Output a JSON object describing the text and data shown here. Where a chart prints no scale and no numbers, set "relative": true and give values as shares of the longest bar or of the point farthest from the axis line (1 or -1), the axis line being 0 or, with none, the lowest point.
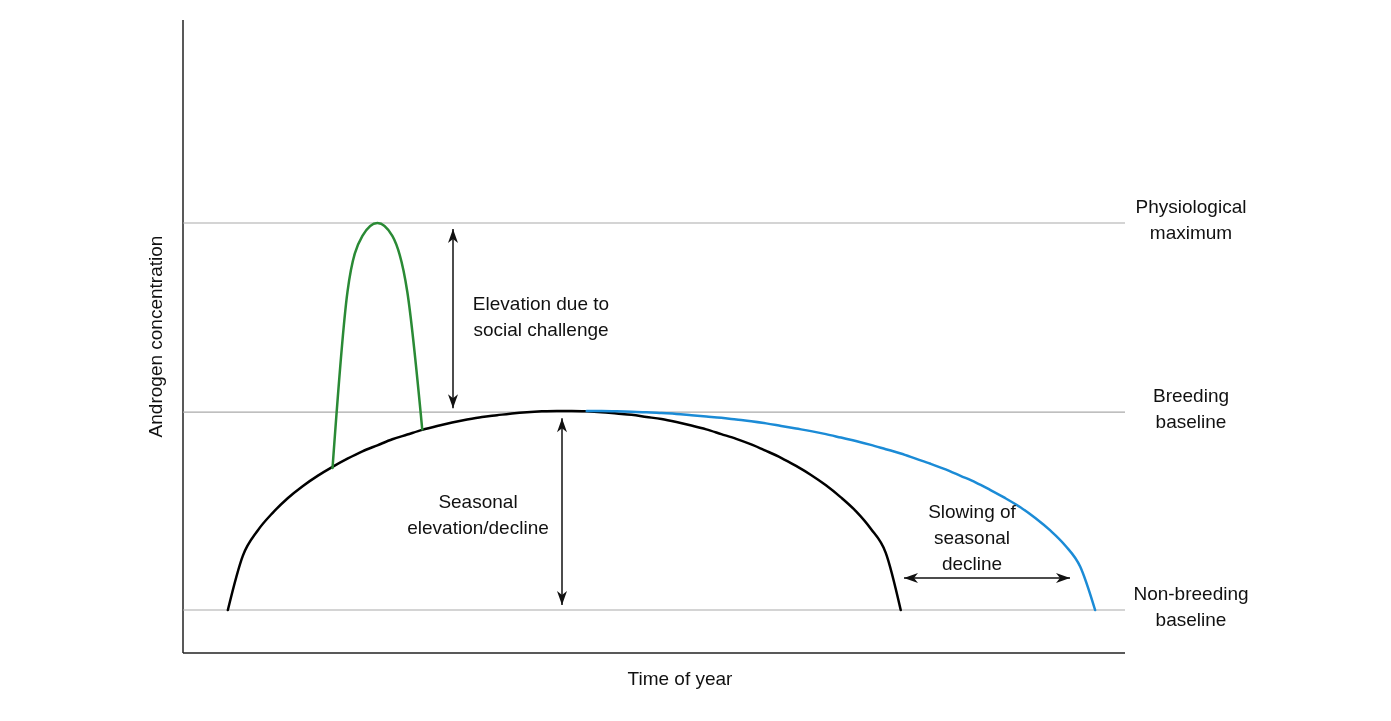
{
  "chart_data": {
    "type": "line",
    "relative": true,
    "xlabel": "Time of year",
    "ylabel": "Androgen concentration",
    "categories": [
      null,
      null,
      null,
      null,
      null,
      null,
      null,
      null,
      null,
      null,
      null,
      null,
      null,
      null,
      null,
      null,
      null,
      null,
      null,
      null,
      null,
      null,
      null,
      null,
      null,
      null,
      null,
      null,
      null,
      null,
      null,
      null,
      null,
      null,
      null,
      null,
      null,
      null,
      null,
      null,
      null,
      null,
      null,
      null,
      null,
      null,
      null,
      null,
      null,
      null,
      null,
      null,
      null,
      null,
      null,
      null,
      null,
      null,
      null,
      null,
      null,
      null,
      null,
      null
    ],
    "series": [
      {
        "color": "#000000",
        "values": [
          null,
          null,
          null,
          0.1,
          0.226,
          0.285,
          0.326,
          0.36,
          0.388,
          0.412,
          0.433,
          0.452,
          0.469,
          0.483,
          0.497,
          0.508,
          0.519,
          0.528,
          0.536,
          0.543,
          0.549,
          0.553,
          0.557,
          0.56,
          0.562,
          0.563,
          0.563,
          0.562,
          0.56,
          0.557,
          0.554,
          0.549,
          0.544,
          0.537,
          0.529,
          0.52,
          0.509,
          0.498,
          0.485,
          0.47,
          0.454,
          0.435,
          0.414,
          0.39,
          0.362,
          0.33,
          0.289,
          0.233,
          0.1,
          null,
          null,
          null,
          null,
          null,
          null,
          null,
          null,
          null,
          null,
          null,
          null,
          null,
          null,
          null
        ]
      },
      {
        "color": "#2a8a35",
        "values": [
          null,
          null,
          null,
          null,
          null,
          null,
          null,
          null,
          null,
          null,
          0.43,
          0.84,
          0.97,
          1,
          0.97,
          0.84,
          0.52,
          null,
          null,
          null,
          null,
          null,
          null,
          null,
          null,
          null,
          null,
          null,
          null,
          null,
          null,
          null,
          null,
          null,
          null,
          null,
          null,
          null,
          null,
          null,
          null,
          null,
          null,
          null,
          null,
          null,
          null,
          null,
          null,
          null,
          null,
          null,
          null,
          null,
          null,
          null,
          null,
          null,
          null,
          null,
          null,
          null,
          null,
          null
        ]
      },
      {
        "color": "#1b8bd6",
        "values": [
          null,
          null,
          null,
          null,
          null,
          null,
          null,
          null,
          null,
          null,
          null,
          null,
          null,
          null,
          null,
          null,
          null,
          null,
          null,
          null,
          null,
          null,
          null,
          null,
          null,
          null,
          null,
          0.563,
          0.563,
          0.562,
          0.561,
          0.56,
          0.558,
          0.556,
          0.553,
          0.55,
          0.547,
          0.543,
          0.539,
          0.534,
          0.528,
          0.522,
          0.516,
          0.509,
          0.501,
          0.493,
          0.484,
          0.474,
          0.464,
          0.452,
          0.44,
          0.427,
          0.412,
          0.397,
          0.379,
          0.36,
          0.339,
          0.314,
          0.285,
          0.25,
          0.201,
          0.1,
          null,
          null
        ]
      }
    ],
    "ref_lines": [
      {
        "axis": "y",
        "value": 1.0,
        "label": "Physiological maximum",
        "color": "#aaaaaa"
      },
      {
        "axis": "y",
        "value": 0.56,
        "label": "Breeding baseline",
        "color": "#aaaaaa"
      },
      {
        "axis": "y",
        "value": 0.1,
        "label": "Non-breeding baseline",
        "color": "#aaaaaa"
      }
    ],
    "annotations": [
      "Elevation due to social challenge",
      "Seasonal elevation/decline",
      "Slowing of seasonal decline"
    ]
  }
}
